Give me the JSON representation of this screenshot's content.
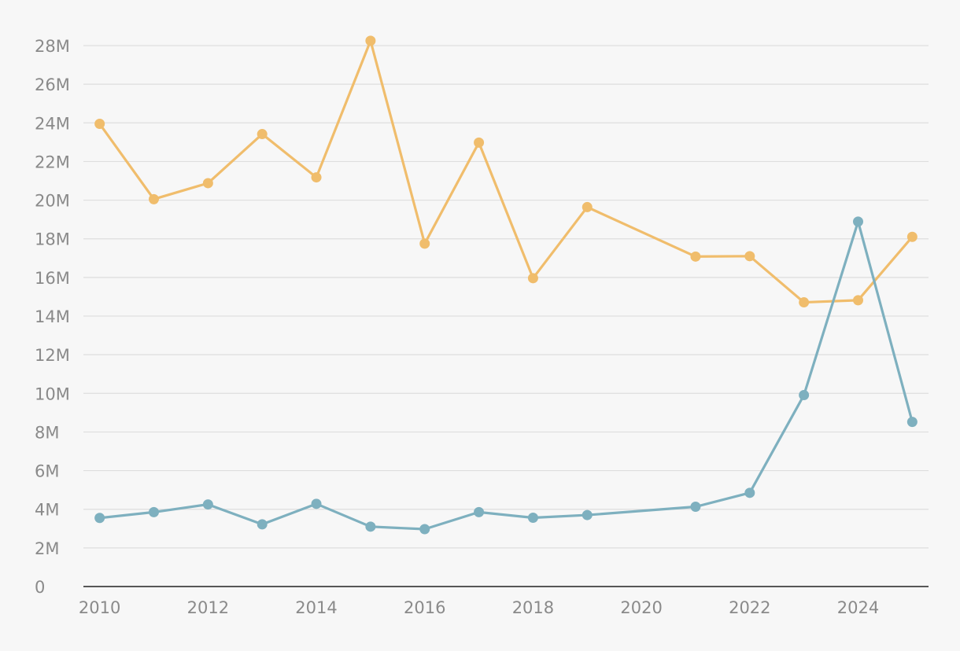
{
  "chart_data": {
    "type": "line",
    "title": "",
    "xlabel": "",
    "ylabel": "",
    "x": [
      2010,
      2011,
      2012,
      2013,
      2014,
      2015,
      2016,
      2017,
      2018,
      2019,
      2021,
      2022,
      2023,
      2024,
      2025
    ],
    "xlim": [
      2009.7,
      2025.3
    ],
    "x_ticks": [
      2010,
      2012,
      2014,
      2016,
      2018,
      2020,
      2022,
      2024
    ],
    "x_tick_labels": [
      "2010",
      "2012",
      "2014",
      "2016",
      "2018",
      "2020",
      "2022",
      "2024"
    ],
    "ylim": [
      0,
      28000000
    ],
    "y_ticks": [
      0,
      2000000,
      4000000,
      6000000,
      8000000,
      10000000,
      12000000,
      14000000,
      16000000,
      18000000,
      20000000,
      22000000,
      24000000,
      26000000,
      28000000
    ],
    "y_tick_labels": [
      "0",
      "2M",
      "4M",
      "6M",
      "8M",
      "10M",
      "12M",
      "14M",
      "16M",
      "18M",
      "20M",
      "22M",
      "24M",
      "26M",
      "28M"
    ],
    "grid": true,
    "legend": "none",
    "series": [
      {
        "color": "#f0bd6c",
        "values": [
          23950000,
          20050000,
          20880000,
          23420000,
          21180000,
          28250000,
          17750000,
          22980000,
          15960000,
          19640000,
          17080000,
          17100000,
          14710000,
          14820000,
          18100000
        ]
      },
      {
        "color": "#7eb0bf",
        "values": [
          3550000,
          3850000,
          4250000,
          3220000,
          4280000,
          3100000,
          2970000,
          3850000,
          3560000,
          3700000,
          4130000,
          4850000,
          9910000,
          18890000,
          8520000
        ]
      }
    ]
  }
}
